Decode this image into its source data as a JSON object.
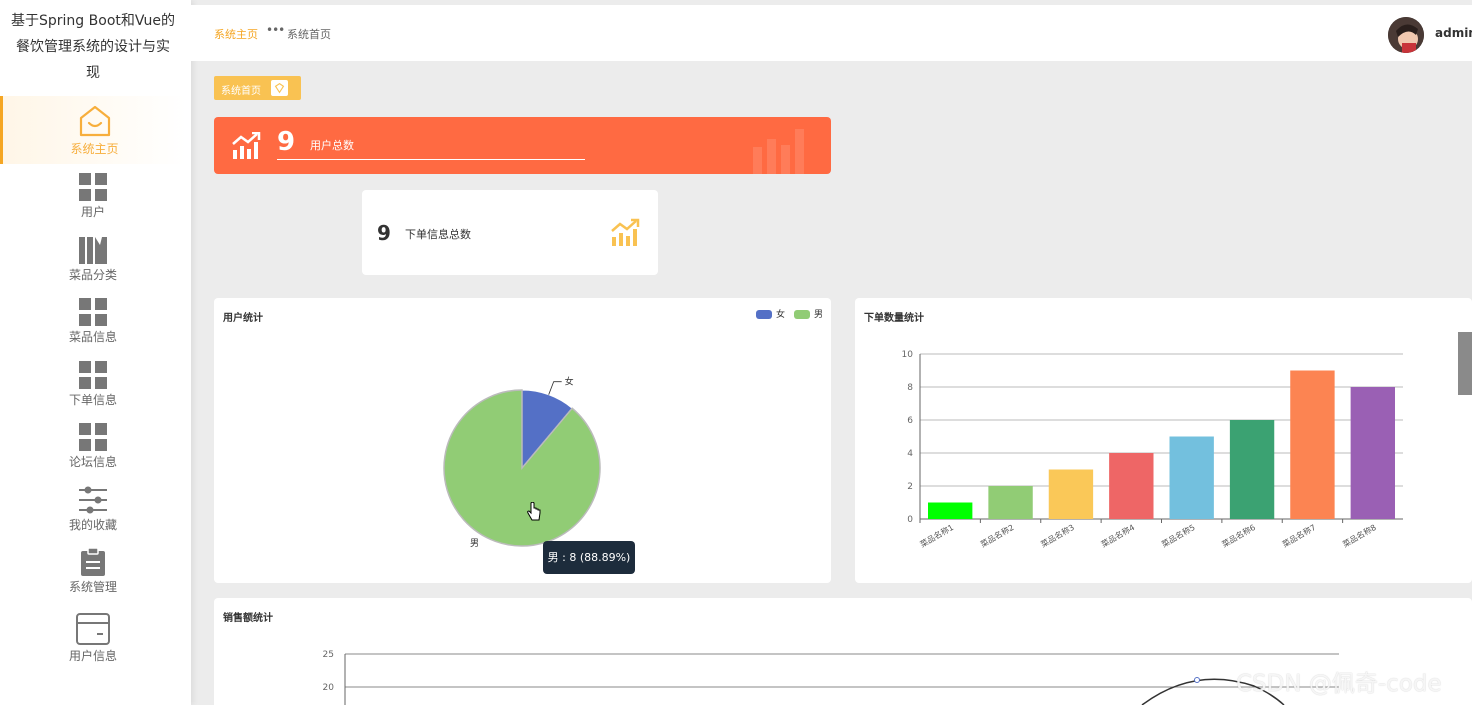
{
  "app": {
    "title": "基于Spring Boot和Vue的餐饮管理系统的设计与实现",
    "title_lines": [
      "基于Spring Boot和Vue的",
      "餐饮管理系统的设计与实",
      "现"
    ]
  },
  "sidebar": {
    "items": [
      {
        "label": "系统主页",
        "icon": "home-icon",
        "active": true
      },
      {
        "label": "用户",
        "icon": "grid-icon"
      },
      {
        "label": "菜品分类",
        "icon": "books-icon"
      },
      {
        "label": "菜品信息",
        "icon": "grid-icon"
      },
      {
        "label": "下单信息",
        "icon": "grid-icon"
      },
      {
        "label": "论坛信息",
        "icon": "grid-icon"
      },
      {
        "label": "我的收藏",
        "icon": "sliders-icon"
      },
      {
        "label": "系统管理",
        "icon": "clipboard-icon"
      },
      {
        "label": "用户信息",
        "icon": "card-icon"
      }
    ]
  },
  "header": {
    "breadcrumb": [
      "系统主页",
      "系统首页"
    ],
    "separator": "•••",
    "username": "admin"
  },
  "tag": {
    "label": "系统首页"
  },
  "stats": {
    "users": {
      "value": "9",
      "label": "用户总数"
    },
    "orders": {
      "value": "9",
      "label": "下单信息总数"
    }
  },
  "colors": {
    "accent": "#f5a623",
    "stat_card": "#ff6a42",
    "female": "#5470c6",
    "male": "#91cc75"
  },
  "pie_panel": {
    "title": "用户统计",
    "tooltip": "男 : 8 (88.89%)"
  },
  "bar_panel": {
    "title": "下单数量统计"
  },
  "line_panel": {
    "title": "销售额统计"
  },
  "watermark": "CSDN @佩奇-code",
  "chart_data": [
    {
      "type": "pie",
      "title": "用户统计",
      "categories": [
        "女",
        "男"
      ],
      "values": [
        1,
        8
      ],
      "colors": [
        "#5470c6",
        "#91cc75"
      ],
      "legend": "top-right"
    },
    {
      "type": "bar",
      "title": "下单数量统计",
      "categories": [
        "菜品名称1",
        "菜品名称2",
        "菜品名称3",
        "菜品名称4",
        "菜品名称5",
        "菜品名称6",
        "菜品名称7",
        "菜品名称8"
      ],
      "values": [
        1,
        2,
        3,
        4,
        5,
        6,
        9,
        8
      ],
      "colors": [
        "#00ff00",
        "#91cc75",
        "#fac858",
        "#ee6666",
        "#73c0de",
        "#3ba272",
        "#fc8452",
        "#9a60b4"
      ],
      "ylim": [
        0,
        10
      ],
      "yticks": [
        0,
        2,
        4,
        6,
        8,
        10
      ]
    },
    {
      "type": "line",
      "title": "销售额统计",
      "yticks_visible": [
        25,
        20
      ],
      "ylim_visible": [
        20,
        25
      ]
    }
  ]
}
